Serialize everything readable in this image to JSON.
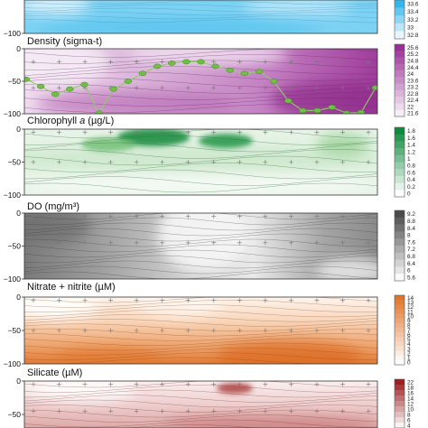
{
  "chart_data": [
    {
      "id": "salinity",
      "type": "heatmap",
      "title": "",
      "ylim": [
        -100,
        0
      ],
      "y_ticks": [
        -100
      ],
      "colorbar": {
        "ticks": [
          "33.6",
          "33.4",
          "33.2",
          "33",
          "32.8"
        ],
        "low": "#e9f6fd",
        "high": "#35b6ea"
      },
      "colors": {
        "fill": "#7cd2f3",
        "deep": "#39b7ea"
      }
    },
    {
      "id": "density",
      "type": "heatmap",
      "title": "Density (sigma-t)",
      "ylim": [
        -100,
        0
      ],
      "y_ticks": [
        0,
        -50,
        -100
      ],
      "colorbar": {
        "ticks": [
          "25.6",
          "25.2",
          "24.8",
          "24.4",
          "24",
          "23.6",
          "23.2",
          "22.8",
          "22.4",
          "22",
          "21.6"
        ],
        "low": "#f6eef6",
        "high": "#9a2f96"
      },
      "overlay_markers_depth_m": [
        -47,
        -58,
        -70,
        -62,
        -55,
        -99,
        -62,
        -50,
        -38,
        -27,
        -22,
        -20,
        -20,
        -27,
        -33,
        -38,
        -35,
        -50,
        -80,
        -95,
        -95,
        -90,
        -99,
        -98,
        -60
      ],
      "colors": {
        "marker": "#6fbf44",
        "line": "#8fcc6a"
      }
    },
    {
      "id": "chlorophyll",
      "type": "heatmap",
      "title": "Chlorophyll a (µg/L)",
      "title_main": "Chlorophyll ",
      "title_italic": "a",
      "title_unit": " (µg/L)",
      "ylim": [
        -100,
        0
      ],
      "y_ticks": [
        0,
        -50,
        -100
      ],
      "colorbar": {
        "ticks": [
          "1.8",
          "1.6",
          "1.4",
          "1.2",
          "1",
          "0.8",
          "0.6",
          "0.4",
          "0.2",
          "0"
        ],
        "low": "#ffffff",
        "high": "#0e8a3c"
      }
    },
    {
      "id": "do",
      "type": "heatmap",
      "title": "DO (mg/m³)",
      "ylim": [
        -100,
        0
      ],
      "y_ticks": [
        0,
        -50,
        -100
      ],
      "colorbar": {
        "ticks": [
          "9.2",
          "8.8",
          "8.4",
          "8",
          "7.6",
          "7.2",
          "6.8",
          "6.4",
          "6",
          "5.6"
        ],
        "low": "#fafafa",
        "high": "#4a4a4a"
      }
    },
    {
      "id": "nitrate",
      "type": "heatmap",
      "title": "Nitrate + nitrite (µM)",
      "ylim": [
        -100,
        0
      ],
      "y_ticks": [
        0,
        -50,
        -100
      ],
      "colorbar": {
        "ticks": [
          "14",
          "13",
          "12",
          "11",
          "10",
          "9",
          "8",
          "7",
          "6",
          "5",
          "4",
          "3",
          "2",
          "1",
          "0"
        ],
        "low": "#ffffff",
        "high": "#e0742a"
      }
    },
    {
      "id": "silicate",
      "type": "heatmap",
      "title": "Silicate (µM)",
      "ylim": [
        -100,
        0
      ],
      "y_ticks": [
        0,
        -50
      ],
      "colorbar": {
        "ticks": [
          "22",
          "18",
          "16",
          "14",
          "12",
          "10",
          "8",
          "6",
          "4"
        ],
        "low": "#fbf2f2",
        "high": "#9c1f1f"
      }
    }
  ]
}
